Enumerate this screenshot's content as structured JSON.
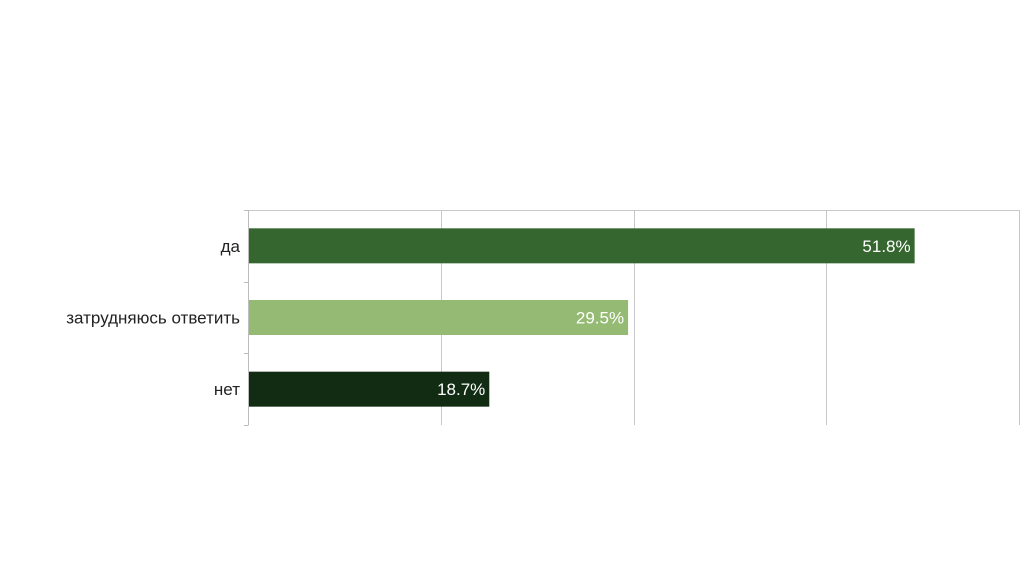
{
  "chart_data": {
    "type": "bar",
    "orientation": "horizontal",
    "categories": [
      "да",
      "затрудняюсь ответить",
      "нет"
    ],
    "values": [
      51.8,
      29.5,
      18.7
    ],
    "value_labels": [
      "51.8%",
      "29.5%",
      "18.7%"
    ],
    "colors": [
      "#35662f",
      "#94ba73",
      "#122c14"
    ],
    "xlim": [
      0,
      60
    ],
    "grid": true,
    "legend": "none"
  }
}
